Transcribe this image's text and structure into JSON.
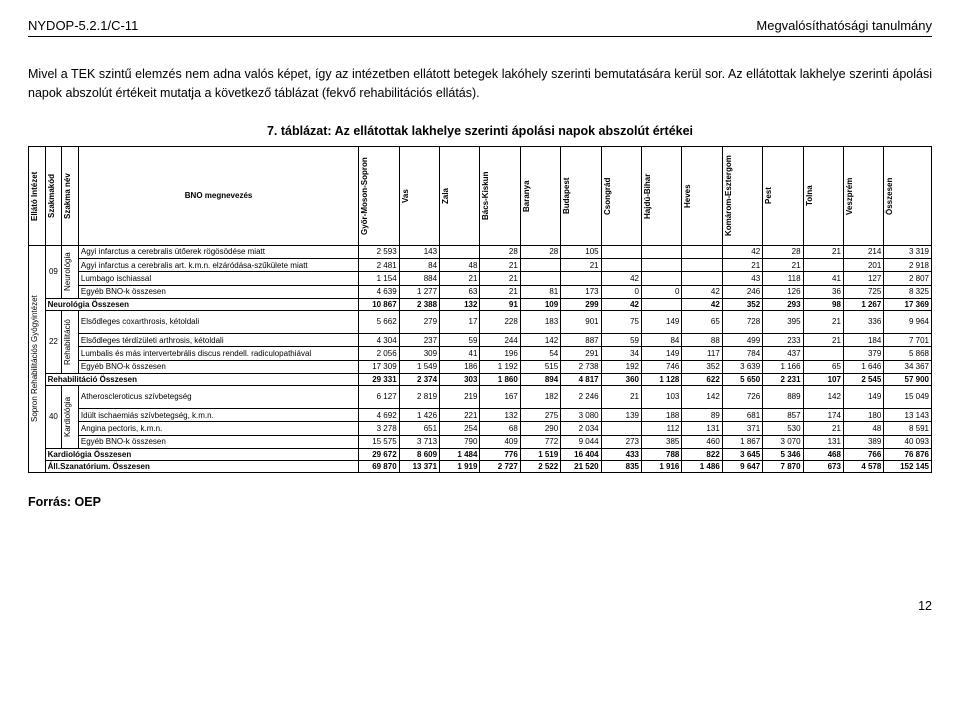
{
  "header": {
    "left": "NYDOP-5.2.1/C-11",
    "right": "Megvalósíthatósági tanulmány"
  },
  "intro": "Mivel a TEK szintű elemzés nem adna valós képet, így az intézetben ellátott betegek lakóhely szerinti bemutatására kerül sor. Az ellátottak lakhelye szerinti ápolási napok abszolút értékeit mutatja a következő táblázat (fekvő rehabilitációs ellátás).",
  "table_caption": "7. táblázat: Az ellátottak lakhelye szerinti ápolási napok abszolút értékei",
  "columns": {
    "c0": "Ellátó Intézet",
    "c1": "Szakmakód",
    "c2": "Szakma név",
    "c3": "BNO megnevezés",
    "c4": "Győr-Moson-Sopron",
    "c5": "Vas",
    "c6": "Zala",
    "c7": "Bács-Kiskun",
    "c8": "Baranya",
    "c9": "Budapest",
    "c10": "Csongrád",
    "c11": "Hajdú-Bihar",
    "c12": "Heves",
    "c13": "Komárom-Esztergom",
    "c14": "Pest",
    "c15": "Tolna",
    "c16": "Veszprém",
    "c17": "Összesen"
  },
  "institute": "Sopron Rehabilitációs Gyógyintézet",
  "groups": [
    {
      "code": "09",
      "name": "Neurológia",
      "rows": [
        {
          "label": "Agyi infarctus a cerebralis ütőerek rögösödése miatt",
          "v": [
            "2 593",
            "143",
            "",
            "28",
            "28",
            "105",
            "",
            "",
            "",
            "42",
            "28",
            "21",
            "214",
            "3 319"
          ]
        },
        {
          "label": "Agyi infarctus a cerebralis art. k.m.n. elzáródása-szűkülete miatt",
          "v": [
            "2 481",
            "84",
            "48",
            "21",
            "",
            "21",
            "",
            "",
            "",
            "21",
            "21",
            "",
            "201",
            "2 918"
          ]
        },
        {
          "label": "Lumbago ischiassal",
          "v": [
            "1 154",
            "884",
            "21",
            "21",
            "",
            "",
            "42",
            "",
            "",
            "43",
            "118",
            "41",
            "127",
            "2 807"
          ]
        },
        {
          "label": "Egyéb BNO-k összesen",
          "v": [
            "4 639",
            "1 277",
            "63",
            "21",
            "81",
            "173",
            "0",
            "0",
            "42",
            "246",
            "126",
            "36",
            "725",
            "8 325"
          ]
        }
      ],
      "subtotal": {
        "label": "Neurológia Összesen",
        "v": [
          "10 867",
          "2 388",
          "132",
          "91",
          "109",
          "299",
          "42",
          "",
          "42",
          "352",
          "293",
          "98",
          "1 267",
          "17 369"
        ]
      }
    },
    {
      "code": "22",
      "name": "Rehabilitáció",
      "rows": [
        {
          "label": "Elsődleges coxarthrosis, kétoldali",
          "v": [
            "5 662",
            "279",
            "17",
            "228",
            "183",
            "901",
            "75",
            "149",
            "65",
            "728",
            "395",
            "21",
            "336",
            "9 964"
          ]
        },
        {
          "label": "Elsődleges térdízületi arthrosis, kétoldali",
          "v": [
            "4 304",
            "237",
            "59",
            "244",
            "142",
            "887",
            "59",
            "84",
            "88",
            "499",
            "233",
            "21",
            "184",
            "7 701"
          ]
        },
        {
          "label": "Lumbalis és más intervertebrális discus rendell. radiculopathiával",
          "v": [
            "2 056",
            "309",
            "41",
            "196",
            "54",
            "291",
            "34",
            "149",
            "117",
            "784",
            "437",
            "",
            "379",
            "5 868"
          ]
        },
        {
          "label": "Egyéb BNO-k összesen",
          "v": [
            "17 309",
            "1 549",
            "186",
            "1 192",
            "515",
            "2 738",
            "192",
            "746",
            "352",
            "3 639",
            "1 166",
            "65",
            "1 646",
            "34 367"
          ]
        }
      ],
      "subtotal": {
        "label": "Rehabilitáció Összesen",
        "v": [
          "29 331",
          "2 374",
          "303",
          "1 860",
          "894",
          "4 817",
          "360",
          "1 128",
          "622",
          "5 650",
          "2 231",
          "107",
          "2 545",
          "57 900"
        ]
      }
    },
    {
      "code": "40",
      "name": "Kardiológia",
      "rows": [
        {
          "label": "Atheroscleroticus szívbetegség",
          "v": [
            "6 127",
            "2 819",
            "219",
            "167",
            "182",
            "2 246",
            "21",
            "103",
            "142",
            "726",
            "889",
            "142",
            "149",
            "15 049"
          ]
        },
        {
          "label": "Idült ischaemiás szívbetegség, k.m.n.",
          "v": [
            "4 692",
            "1 426",
            "221",
            "132",
            "275",
            "3 080",
            "139",
            "188",
            "89",
            "681",
            "857",
            "174",
            "180",
            "13 143"
          ]
        },
        {
          "label": "Angina pectoris, k.m.n.",
          "v": [
            "3 278",
            "651",
            "254",
            "68",
            "290",
            "2 034",
            "",
            "112",
            "131",
            "371",
            "530",
            "21",
            "48",
            "8 591"
          ]
        },
        {
          "label": "Egyéb BNO-k összesen",
          "v": [
            "15 575",
            "3 713",
            "790",
            "409",
            "772",
            "9 044",
            "273",
            "385",
            "460",
            "1 867",
            "3 070",
            "131",
            "389",
            "40 093"
          ]
        }
      ],
      "subtotal": {
        "label": "Kardiológia Összesen",
        "v": [
          "29 672",
          "8 609",
          "1 484",
          "776",
          "1 519",
          "16 404",
          "433",
          "788",
          "822",
          "3 645",
          "5 346",
          "468",
          "766",
          "76 876"
        ]
      }
    }
  ],
  "grandtotal": {
    "label": "Áll.Szanatórium. Összesen",
    "v": [
      "69 870",
      "13 371",
      "1 919",
      "2 727",
      "2 522",
      "21 520",
      "835",
      "1 916",
      "1 486",
      "9 647",
      "7 870",
      "673",
      "4 578",
      "152 145"
    ]
  },
  "source": "Forrás: OEP",
  "footer_page": "12"
}
